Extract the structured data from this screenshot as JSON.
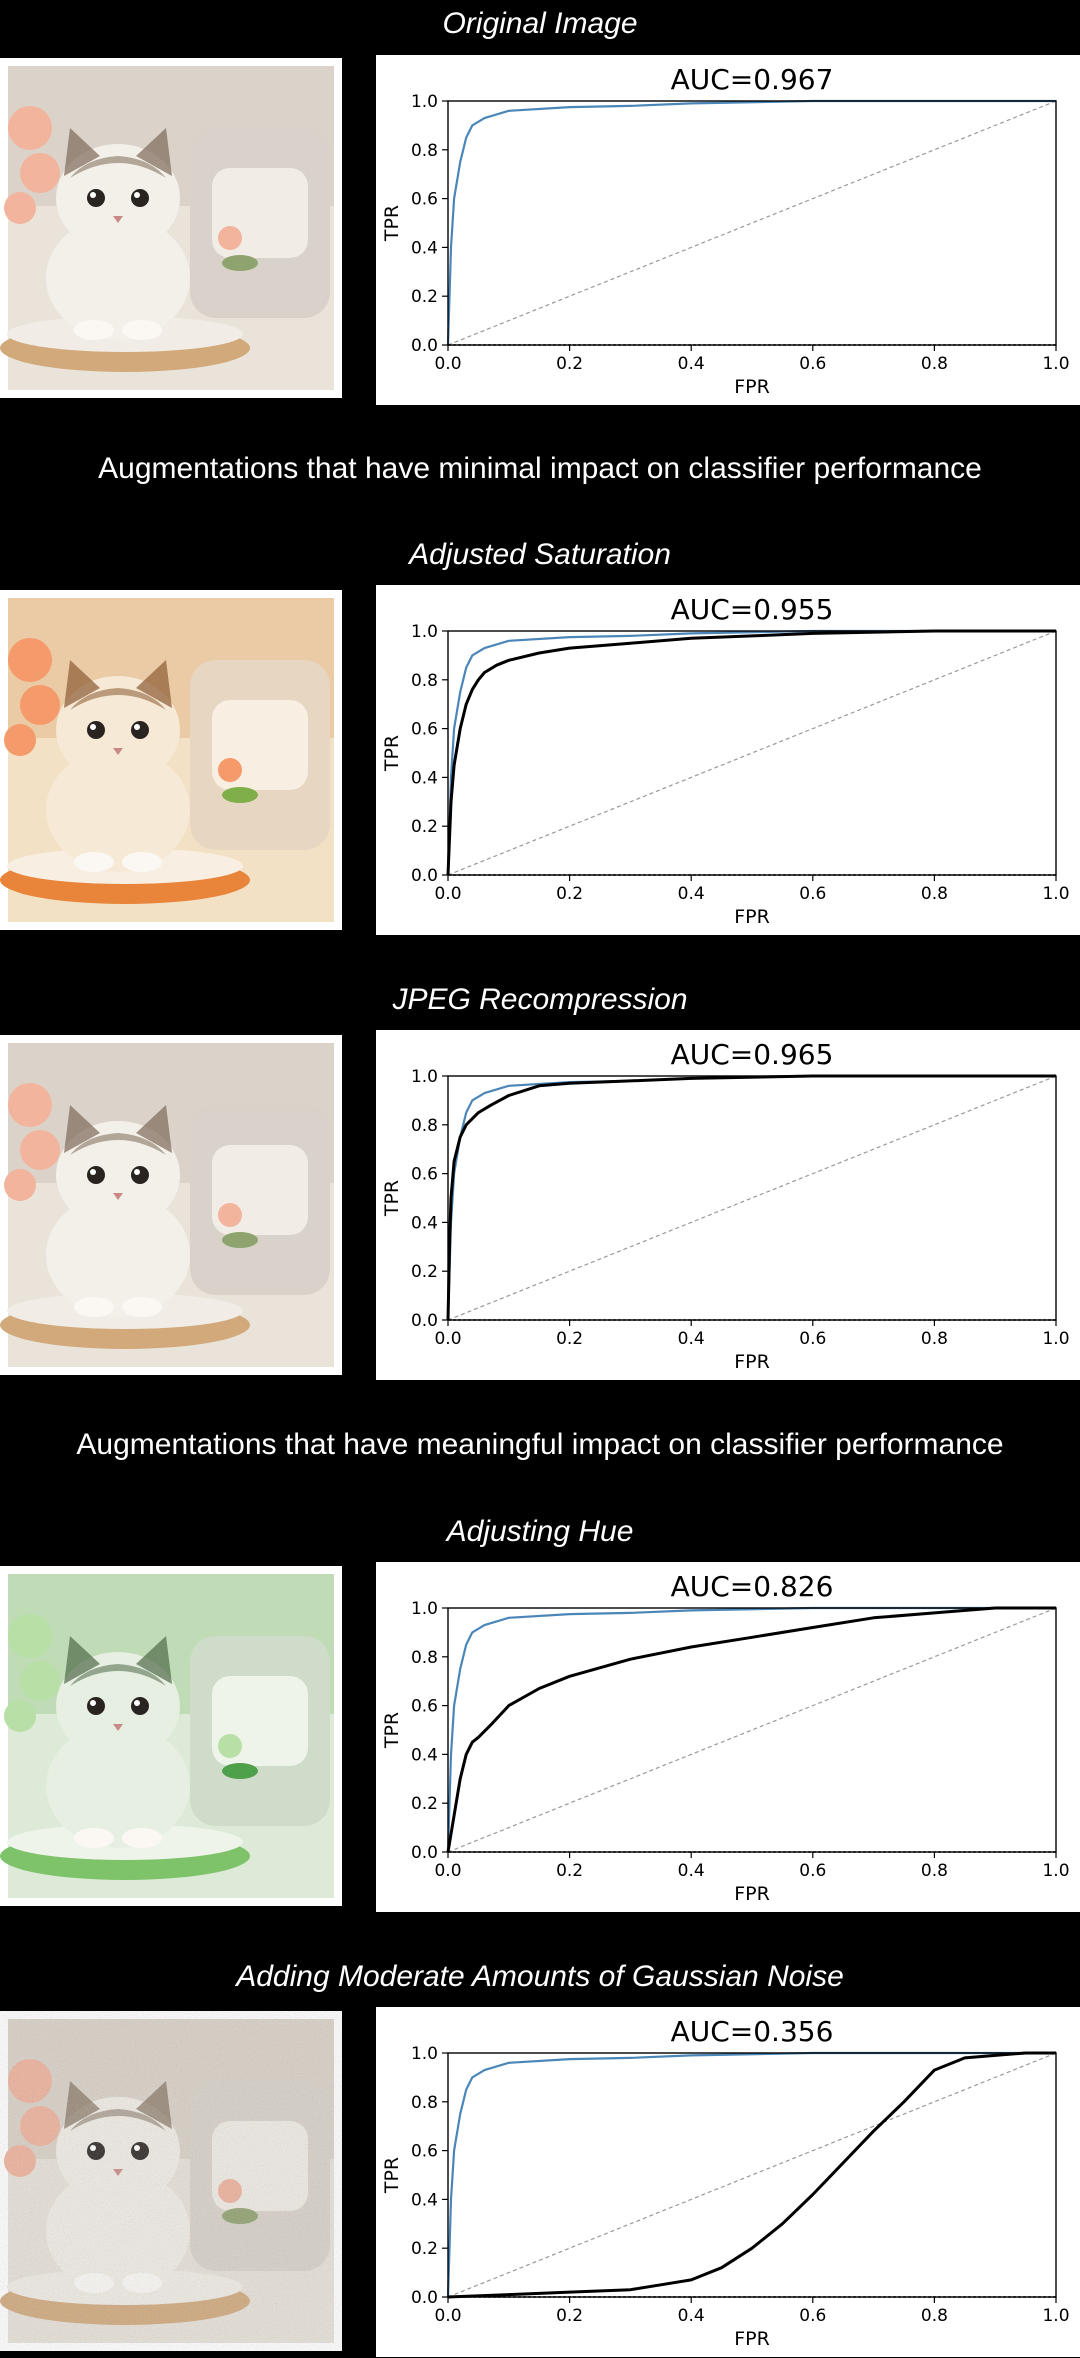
{
  "sections": {
    "heading_minimal": "Augmentations that have minimal impact on classifier performance",
    "heading_meaningful": "Augmentations that have meaningful impact on classifier performance"
  },
  "panels": [
    {
      "title": "Original Image",
      "thumb_tint": "original",
      "auc_label": "AUC=0.967"
    },
    {
      "title": "Adjusted Saturation",
      "thumb_tint": "saturated",
      "auc_label": "AUC=0.955"
    },
    {
      "title": "JPEG Recompression",
      "thumb_tint": "original",
      "auc_label": "AUC=0.965"
    },
    {
      "title": "Adjusting Hue",
      "thumb_tint": "green",
      "auc_label": "AUC=0.826"
    },
    {
      "title": "Adding Moderate Amounts of Gaussian Noise",
      "thumb_tint": "noisy",
      "auc_label": "AUC=0.356"
    }
  ],
  "colors": {
    "baseline": "#4a86b8",
    "augmented": "#000000",
    "diagonal": "#999999",
    "background": "#000000"
  },
  "chart_data": [
    {
      "type": "line",
      "title": "AUC=0.967",
      "xlabel": "FPR",
      "ylabel": "TPR",
      "xlim": [
        0,
        1
      ],
      "ylim": [
        0,
        1
      ],
      "x_ticks": [
        "0.0",
        "0.2",
        "0.4",
        "0.6",
        "0.8",
        "1.0"
      ],
      "y_ticks": [
        "0.0",
        "0.2",
        "0.4",
        "0.6",
        "0.8",
        "1.0"
      ],
      "series": [
        {
          "role": "baseline",
          "x": [
            0,
            0.005,
            0.01,
            0.02,
            0.03,
            0.04,
            0.06,
            0.1,
            0.2,
            0.3,
            0.4,
            0.6,
            0.8,
            1.0
          ],
          "y": [
            0,
            0.4,
            0.6,
            0.75,
            0.85,
            0.9,
            0.93,
            0.96,
            0.975,
            0.98,
            0.99,
            1.0,
            1.0,
            1.0
          ]
        }
      ]
    },
    {
      "type": "line",
      "title": "AUC=0.955",
      "xlabel": "FPR",
      "ylabel": "TPR",
      "xlim": [
        0,
        1
      ],
      "ylim": [
        0,
        1
      ],
      "x_ticks": [
        "0.0",
        "0.2",
        "0.4",
        "0.6",
        "0.8",
        "1.0"
      ],
      "y_ticks": [
        "0.0",
        "0.2",
        "0.4",
        "0.6",
        "0.8",
        "1.0"
      ],
      "series": [
        {
          "role": "baseline",
          "x": [
            0,
            0.005,
            0.01,
            0.02,
            0.03,
            0.04,
            0.06,
            0.1,
            0.2,
            0.3,
            0.4,
            0.6,
            0.8,
            1.0
          ],
          "y": [
            0,
            0.4,
            0.6,
            0.75,
            0.85,
            0.9,
            0.93,
            0.96,
            0.975,
            0.98,
            0.99,
            1.0,
            1.0,
            1.0
          ]
        },
        {
          "role": "augmented",
          "x": [
            0,
            0.005,
            0.01,
            0.02,
            0.03,
            0.04,
            0.05,
            0.06,
            0.08,
            0.1,
            0.15,
            0.2,
            0.3,
            0.4,
            0.5,
            0.6,
            0.8,
            1.0
          ],
          "y": [
            0,
            0.3,
            0.45,
            0.6,
            0.7,
            0.76,
            0.8,
            0.83,
            0.86,
            0.88,
            0.91,
            0.93,
            0.95,
            0.97,
            0.98,
            0.99,
            1.0,
            1.0
          ]
        }
      ]
    },
    {
      "type": "line",
      "title": "AUC=0.965",
      "xlabel": "FPR",
      "ylabel": "TPR",
      "xlim": [
        0,
        1
      ],
      "ylim": [
        0,
        1
      ],
      "x_ticks": [
        "0.0",
        "0.2",
        "0.4",
        "0.6",
        "0.8",
        "1.0"
      ],
      "y_ticks": [
        "0.0",
        "0.2",
        "0.4",
        "0.6",
        "0.8",
        "1.0"
      ],
      "series": [
        {
          "role": "baseline",
          "x": [
            0,
            0.005,
            0.01,
            0.02,
            0.03,
            0.04,
            0.06,
            0.1,
            0.2,
            0.3,
            0.4,
            0.6,
            0.8,
            1.0
          ],
          "y": [
            0,
            0.4,
            0.6,
            0.75,
            0.85,
            0.9,
            0.93,
            0.96,
            0.975,
            0.98,
            0.99,
            1.0,
            1.0,
            1.0
          ]
        },
        {
          "role": "augmented",
          "x": [
            0,
            0.003,
            0.005,
            0.01,
            0.02,
            0.03,
            0.05,
            0.07,
            0.1,
            0.15,
            0.2,
            0.3,
            0.4,
            0.6,
            0.8,
            1.0
          ],
          "y": [
            0,
            0.35,
            0.5,
            0.65,
            0.75,
            0.8,
            0.85,
            0.88,
            0.92,
            0.96,
            0.97,
            0.98,
            0.99,
            1.0,
            1.0,
            1.0
          ]
        }
      ]
    },
    {
      "type": "line",
      "title": "AUC=0.826",
      "xlabel": "FPR",
      "ylabel": "TPR",
      "xlim": [
        0,
        1
      ],
      "ylim": [
        0,
        1
      ],
      "x_ticks": [
        "0.0",
        "0.2",
        "0.4",
        "0.6",
        "0.8",
        "1.0"
      ],
      "y_ticks": [
        "0.0",
        "0.2",
        "0.4",
        "0.6",
        "0.8",
        "1.0"
      ],
      "series": [
        {
          "role": "baseline",
          "x": [
            0,
            0.005,
            0.01,
            0.02,
            0.03,
            0.04,
            0.06,
            0.1,
            0.2,
            0.3,
            0.4,
            0.6,
            0.8,
            1.0
          ],
          "y": [
            0,
            0.4,
            0.6,
            0.75,
            0.85,
            0.9,
            0.93,
            0.96,
            0.975,
            0.98,
            0.99,
            1.0,
            1.0,
            1.0
          ]
        },
        {
          "role": "augmented",
          "x": [
            0,
            0.01,
            0.02,
            0.03,
            0.04,
            0.05,
            0.07,
            0.1,
            0.15,
            0.2,
            0.3,
            0.4,
            0.5,
            0.6,
            0.7,
            0.8,
            0.9,
            1.0
          ],
          "y": [
            0,
            0.15,
            0.3,
            0.4,
            0.45,
            0.47,
            0.52,
            0.6,
            0.67,
            0.72,
            0.79,
            0.84,
            0.88,
            0.92,
            0.96,
            0.98,
            1.0,
            1.0
          ]
        }
      ]
    },
    {
      "type": "line",
      "title": "AUC=0.356",
      "xlabel": "FPR",
      "ylabel": "TPR",
      "xlim": [
        0,
        1
      ],
      "ylim": [
        0,
        1
      ],
      "x_ticks": [
        "0.0",
        "0.2",
        "0.4",
        "0.6",
        "0.8",
        "1.0"
      ],
      "y_ticks": [
        "0.0",
        "0.2",
        "0.4",
        "0.6",
        "0.8",
        "1.0"
      ],
      "series": [
        {
          "role": "baseline",
          "x": [
            0,
            0.005,
            0.01,
            0.02,
            0.03,
            0.04,
            0.06,
            0.1,
            0.2,
            0.3,
            0.4,
            0.6,
            0.8,
            1.0
          ],
          "y": [
            0,
            0.4,
            0.6,
            0.75,
            0.85,
            0.9,
            0.93,
            0.96,
            0.975,
            0.98,
            0.99,
            1.0,
            1.0,
            1.0
          ]
        },
        {
          "role": "augmented",
          "x": [
            0,
            0.1,
            0.2,
            0.3,
            0.35,
            0.4,
            0.45,
            0.5,
            0.55,
            0.6,
            0.65,
            0.7,
            0.75,
            0.8,
            0.85,
            0.9,
            0.95,
            1.0
          ],
          "y": [
            0,
            0.01,
            0.02,
            0.03,
            0.05,
            0.07,
            0.12,
            0.2,
            0.3,
            0.42,
            0.55,
            0.68,
            0.8,
            0.93,
            0.98,
            0.99,
            1.0,
            1.0
          ]
        }
      ]
    }
  ]
}
